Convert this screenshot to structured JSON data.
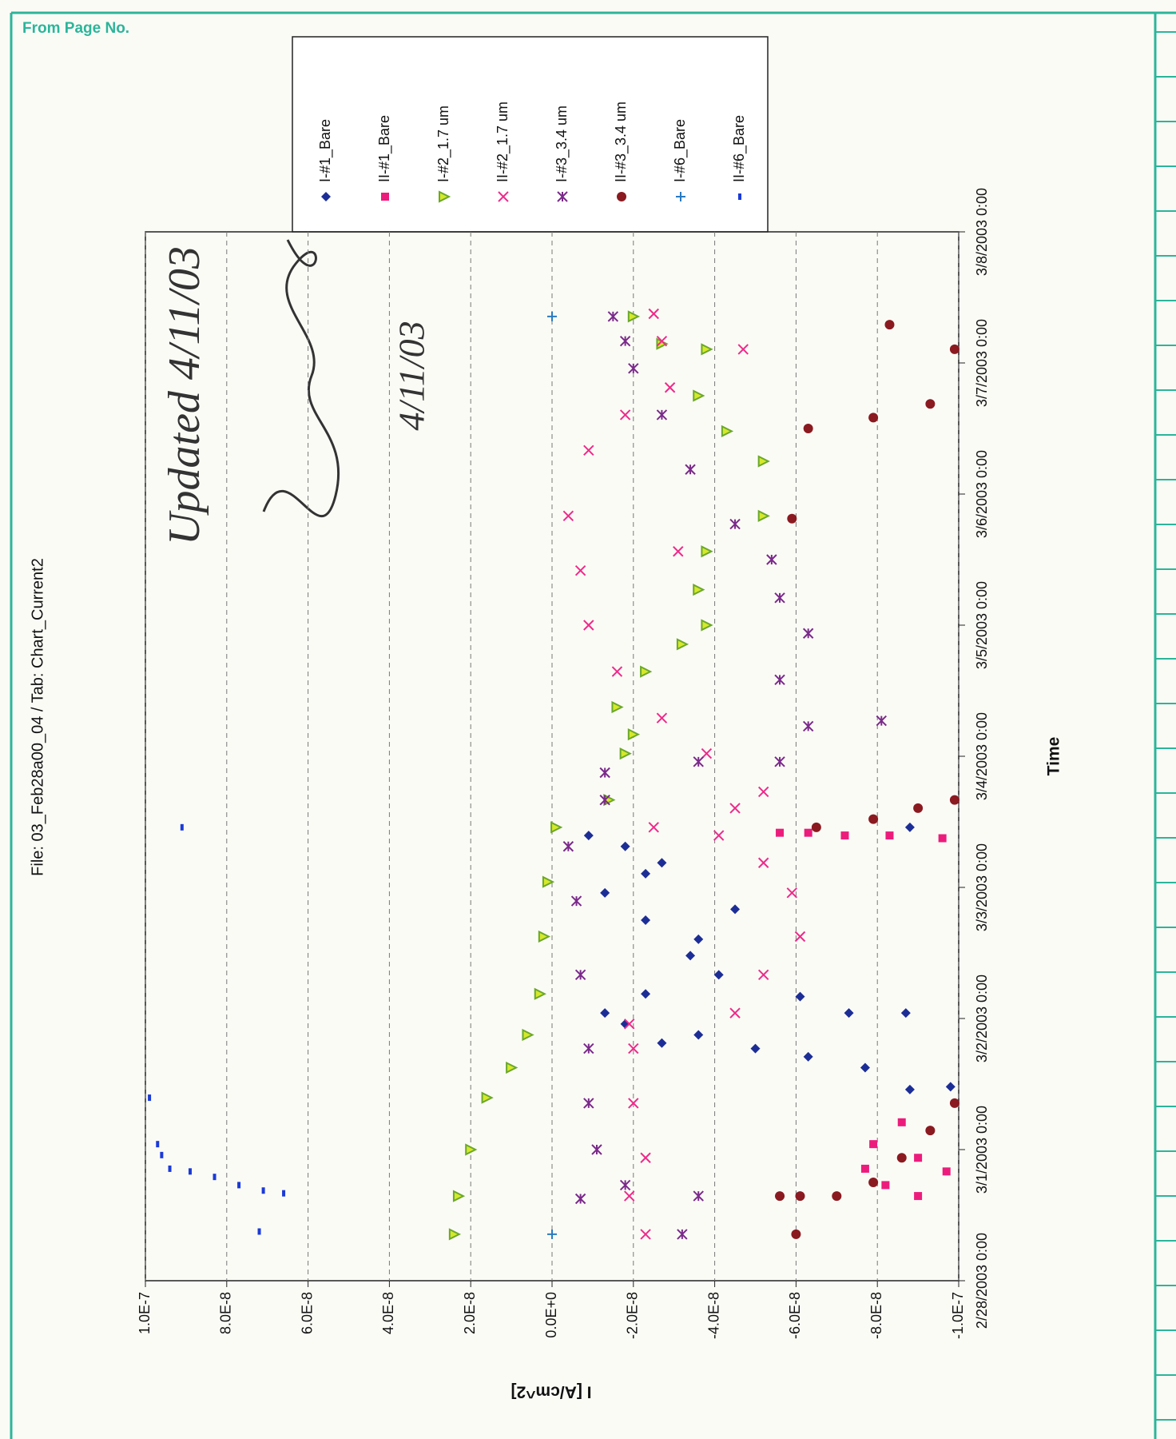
{
  "header": "From Page No.",
  "chart_data": {
    "type": "scatter",
    "title": "File:  03_Feb28a00_04  / Tab: Chart_Current2",
    "x_label": "Time",
    "y_label": "I [A/cm^2]",
    "annotations": [
      {
        "text": "Updated 4/11/03"
      },
      {
        "text": "4/11/03"
      }
    ],
    "xlim": [
      "2/28/2003 0:00",
      "3/8/2003 0:00"
    ],
    "xticks": [
      "2/28/2003 0:00",
      "3/1/2003 0:00",
      "3/2/2003 0:00",
      "3/3/2003 0:00",
      "3/4/2003 0:00",
      "3/5/2003 0:00",
      "3/6/2003 0:00",
      "3/7/2003 0:00",
      "3/8/2003 0:00"
    ],
    "ylim": [
      -1e-07,
      1e-07
    ],
    "yticks": [
      {
        "value": 1e-07,
        "label": "1.0E-7"
      },
      {
        "value": 8e-08,
        "label": "8.0E-8"
      },
      {
        "value": 6e-08,
        "label": "6.0E-8"
      },
      {
        "value": 4e-08,
        "label": "4.0E-8"
      },
      {
        "value": 2e-08,
        "label": "2.0E-8"
      },
      {
        "value": 0,
        "label": "0.0E+0"
      },
      {
        "value": -2e-08,
        "label": "-2.0E-8"
      },
      {
        "value": -4e-08,
        "label": "-4.0E-8"
      },
      {
        "value": -6e-08,
        "label": "-6.0E-8"
      },
      {
        "value": -8e-08,
        "label": "-8.0E-8"
      },
      {
        "value": -1e-07,
        "label": "-1.0E-7"
      }
    ],
    "grid": true,
    "legend": "top-right",
    "series": [
      {
        "name": "I-#1_Bare",
        "color": "#1c2e96",
        "marker": "diamond",
        "x": [
          "3/1/2003 11:30",
          "3/1/2003 11:00",
          "3/1/2003 15:00",
          "3/1/2003 17:00",
          "3/1/2003 18:30",
          "3/1/2003 21:00",
          "3/1/2003 19:30",
          "3/1/2003 23:00",
          "3/2/2003 1:00",
          "3/2/2003 4:30",
          "3/2/2003 8:00",
          "3/2/2003 11:30",
          "3/2/2003 14:30",
          "3/2/2003 18:00",
          "3/2/2003 20:00",
          "3/2/2003 23:00",
          "3/3/2003 2:30",
          "3/3/2003 4:30",
          "3/3/2003 7:30",
          "3/3/2003 9:30",
          "3/3/2003 11:00",
          "3/2/2003 1:00",
          "3/2/2003 1:00",
          "3/2/2003 4:00"
        ],
        "values": [
          -9.8e-08,
          -8.8e-08,
          -7.7e-08,
          -6.3e-08,
          -5e-08,
          -3.6e-08,
          -2.7e-08,
          -1.8e-08,
          -1.3e-08,
          -2.3e-08,
          -4.1e-08,
          -3.4e-08,
          -3.6e-08,
          -2.3e-08,
          -4.5e-08,
          -1.3e-08,
          -2.3e-08,
          -2.7e-08,
          -1.8e-08,
          -9e-09,
          -8.8e-08,
          -7.3e-08,
          -8.7e-08,
          -6.1e-08
        ]
      },
      {
        "name": "II-#1_Bare",
        "color": "#ec1c7c",
        "marker": "square",
        "x": [
          "3/1/2003 1:00",
          "3/1/2003 5:00",
          "2/28/2003 22:30",
          "2/28/2003 20:00",
          "2/28/2003 17:30",
          "2/28/2003 20:30",
          "2/28/2003 15:30",
          "3/3/2003 10:00",
          "3/3/2003 9:30",
          "3/3/2003 9:30",
          "3/3/2003 9:00",
          "3/3/2003 10:00"
        ],
        "values": [
          -7.9e-08,
          -8.6e-08,
          -9e-08,
          -9.7e-08,
          -8.2e-08,
          -7.7e-08,
          -9e-08,
          -6.3e-08,
          -7.2e-08,
          -8.3e-08,
          -9.6e-08,
          -5.6e-08
        ]
      },
      {
        "name": "I-#2_1.7 um",
        "color": "#6aa82a",
        "marker": "triangle",
        "x": [
          "2/28/2003 8:30",
          "2/28/2003 15:30",
          "3/1/2003 0:00",
          "3/1/2003 9:30",
          "3/1/2003 15:00",
          "3/1/2003 21:00",
          "3/2/2003 4:30",
          "3/2/2003 15:00",
          "3/3/2003 1:00",
          "3/3/2003 11:00",
          "3/3/2003 16:00",
          "3/4/2003 0:30",
          "3/4/2003 4:00",
          "3/4/2003 9:00",
          "3/4/2003 15:30",
          "3/4/2003 20:30",
          "3/5/2003 0:00",
          "3/5/2003 6:30",
          "3/5/2003 13:30",
          "3/5/2003 20:00",
          "3/6/2003 6:00",
          "3/6/2003 11:30",
          "3/6/2003 18:00",
          "3/7/2003 2:30",
          "3/7/2003 3:30",
          "3/7/2003 8:30"
        ],
        "values": [
          2.4e-08,
          2.3e-08,
          2e-08,
          1.6e-08,
          1e-08,
          6e-09,
          3e-09,
          2e-09,
          1e-09,
          -1e-09,
          -1.4e-08,
          -1.8e-08,
          -2e-08,
          -1.6e-08,
          -2.3e-08,
          -3.2e-08,
          -3.8e-08,
          -3.6e-08,
          -3.8e-08,
          -5.2e-08,
          -5.2e-08,
          -4.3e-08,
          -3.6e-08,
          -3.8e-08,
          -2.7e-08,
          -2e-08
        ]
      },
      {
        "name": "II-#2_1.7 um",
        "color": "#ee2a8a",
        "marker": "x",
        "x": [
          "2/28/2003 8:30",
          "2/28/2003 15:30",
          "2/28/2003 22:30",
          "3/1/2003 8:30",
          "3/1/2003 18:30",
          "3/1/2003 23:00",
          "3/2/2003 1:00",
          "3/2/2003 8:00",
          "3/2/2003 15:00",
          "3/2/2003 23:00",
          "3/3/2003 4:30",
          "3/3/2003 9:30",
          "3/3/2003 11:00",
          "3/3/2003 14:30",
          "3/3/2003 17:30",
          "3/4/2003 0:30",
          "3/4/2003 7:00",
          "3/4/2003 15:30",
          "3/5/2003 0:00",
          "3/5/2003 10:00",
          "3/5/2003 20:00",
          "3/6/2003 8:00",
          "3/6/2003 14:30",
          "3/6/2003 19:30",
          "3/7/2003 4:00",
          "3/7/2003 9:00",
          "3/7/2003 2:30",
          "3/5/2003 13:30"
        ],
        "values": [
          -2.3e-08,
          -1.9e-08,
          -2.3e-08,
          -2e-08,
          -2e-08,
          -1.9e-08,
          -4.5e-08,
          -5.2e-08,
          -6.1e-08,
          -5.9e-08,
          -5.2e-08,
          -4.1e-08,
          -2.5e-08,
          -4.5e-08,
          -5.2e-08,
          -3.8e-08,
          -2.7e-08,
          -1.6e-08,
          -9e-09,
          -7e-09,
          -4e-09,
          -9e-09,
          -1.8e-08,
          -2.9e-08,
          -2.7e-08,
          -2.5e-08,
          -4.7e-08,
          -3.1e-08
        ]
      },
      {
        "name": "I-#3_3.4 um",
        "color": "#7a2a8a",
        "marker": "asterisk",
        "x": [
          "2/28/2003 15:00",
          "2/28/2003 8:30",
          "2/28/2003 15:30",
          "2/28/2003 17:30",
          "3/1/2003 0:00",
          "3/1/2003 8:30",
          "3/1/2003 18:30",
          "3/2/2003 8:00",
          "3/2/2003 21:30",
          "3/3/2003 7:30",
          "3/3/2003 16:00",
          "3/3/2003 21:00",
          "3/3/2003 23:00",
          "3/3/2003 23:00",
          "3/4/2003 5:30",
          "3/4/2003 6:30",
          "3/4/2003 14:00",
          "3/4/2003 22:30",
          "3/5/2003 5:00",
          "3/5/2003 12:00",
          "3/5/2003 18:30",
          "3/6/2003 4:30",
          "3/6/2003 14:30",
          "3/6/2003 23:00",
          "3/7/2003 4:00",
          "3/7/2003 8:30"
        ],
        "values": [
          -7e-09,
          -3.2e-08,
          -3.6e-08,
          -1.8e-08,
          -1.1e-08,
          -9e-09,
          -9e-09,
          -7e-09,
          -6e-09,
          -4e-09,
          -1.3e-08,
          -1.3e-08,
          -3.6e-08,
          -5.6e-08,
          -6.3e-08,
          -8.1e-08,
          -5.6e-08,
          -6.3e-08,
          -5.6e-08,
          -5.4e-08,
          -4.5e-08,
          -3.4e-08,
          -2.7e-08,
          -2e-08,
          -1.8e-08,
          -1.5e-08
        ]
      },
      {
        "name": "II-#3_3.4 um",
        "color": "#8a1a20",
        "marker": "circle",
        "x": [
          "2/28/2003 8:30",
          "2/28/2003 15:30",
          "2/28/2003 15:30",
          "2/28/2003 15:30",
          "2/28/2003 18:00",
          "2/28/2003 22:30",
          "3/1/2003 3:30",
          "3/1/2003 8:30",
          "3/3/2003 16:00",
          "3/3/2003 14:30",
          "3/3/2003 12:30",
          "3/3/2003 11:00",
          "3/5/2003 19:30",
          "3/6/2003 12:00",
          "3/6/2003 14:00",
          "3/6/2003 16:30",
          "3/7/2003 2:30",
          "3/7/2003 7:00"
        ],
        "values": [
          -6e-08,
          -5.6e-08,
          -6.1e-08,
          -7e-08,
          -7.9e-08,
          -8.6e-08,
          -9.3e-08,
          -9.9e-08,
          -9.9e-08,
          -9e-08,
          -7.9e-08,
          -6.5e-08,
          -5.9e-08,
          -6.3e-08,
          -7.9e-08,
          -9.3e-08,
          -9.9e-08,
          -8.3e-08
        ]
      },
      {
        "name": "I-#6_Bare",
        "color": "#2a7ac0",
        "marker": "plus",
        "x": [
          "2/28/2003 8:30",
          "3/7/2003 8:30"
        ],
        "values": [
          0,
          0
        ]
      },
      {
        "name": "II-#6_Bare",
        "color": "#1a3ad8",
        "marker": "dash",
        "x": [
          "3/1/2003 9:30",
          "3/1/2003 1:00",
          "2/28/2003 23:00",
          "2/28/2003 20:30",
          "2/28/2003 20:00",
          "2/28/2003 19:00",
          "2/28/2003 17:30",
          "2/28/2003 16:30",
          "2/28/2003 16:00",
          "2/28/2003 9:00",
          "3/3/2003 11:00"
        ],
        "values": [
          9.9e-08,
          9.7e-08,
          9.6e-08,
          9.4e-08,
          8.9e-08,
          8.3e-08,
          7.7e-08,
          7.1e-08,
          6.6e-08,
          7.2e-08,
          9.1e-08
        ]
      }
    ]
  }
}
